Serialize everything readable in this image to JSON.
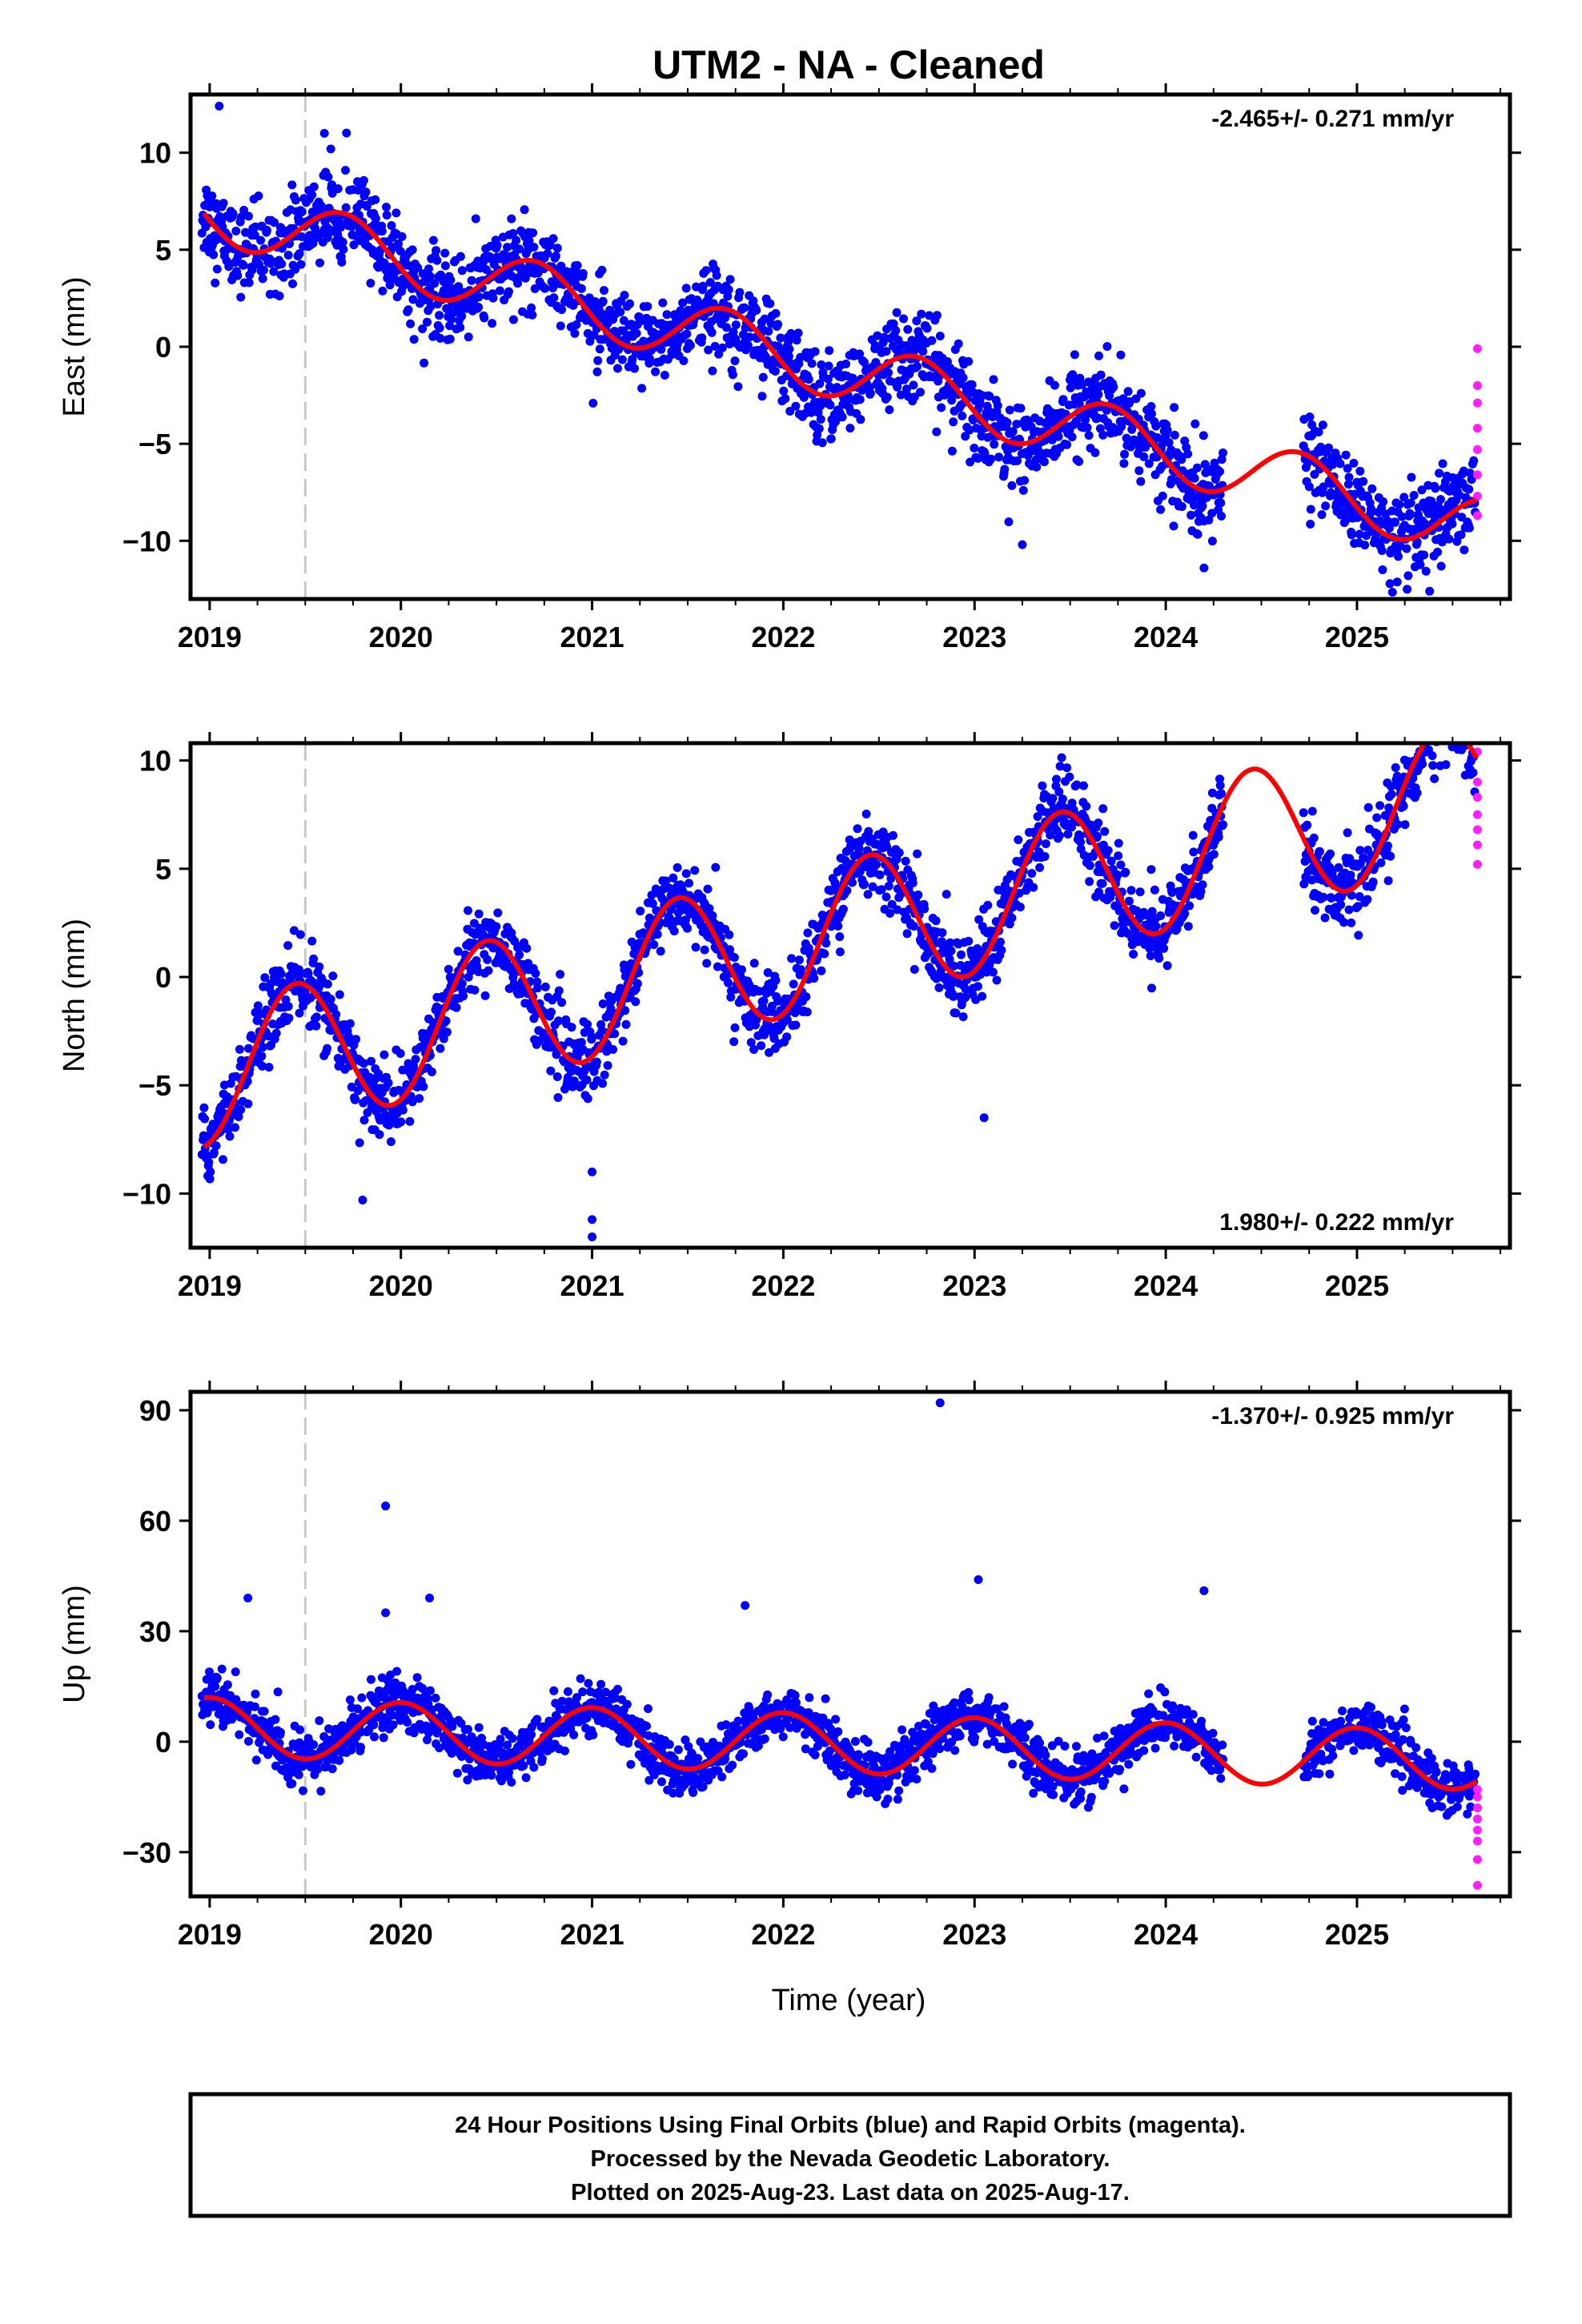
{
  "title": "UTM2  - NA - Cleaned",
  "xlabel": "Time (year)",
  "footer": [
    "24 Hour Positions Using Final Orbits (blue) and Rapid Orbits (magenta).",
    "Processed by the Nevada Geodetic Laboratory.",
    "Plotted on 2025-Aug-23. Last data on 2025-Aug-17."
  ],
  "colors": {
    "final": "#0000ff",
    "rapid": "#ff20ff",
    "model": "#ff0000",
    "event_line": "#c8c8c8"
  },
  "chart_data": [
    {
      "type": "scatter",
      "ylabel": "East (mm)",
      "rate": "-2.465+/- 0.271 mm/yr",
      "rate_position": "top-right",
      "xlim": [
        2018.9,
        2025.8
      ],
      "ylim": [
        -13,
        13
      ],
      "xticks": [
        "2019",
        "2020",
        "2021",
        "2022",
        "2023",
        "2024",
        "2025"
      ],
      "yticks": [
        "10",
        "5",
        "0",
        "−5",
        "−10"
      ],
      "yticks_values": [
        10,
        5,
        0,
        -5,
        -10
      ],
      "event_line_x": 2019.5,
      "trend": {
        "rate": -2.465,
        "value_at_2019": 7.0
      },
      "seasonal_amplitude": 1.6,
      "seasonal_phase_year": 2019.7,
      "noise": 1.1,
      "gaps": [
        [
          2024.3,
          2024.72
        ]
      ],
      "data_end": 2025.62,
      "rapid_points": [
        -0.1,
        -2.0,
        -2.9,
        -4.2,
        -5.3,
        -6.6,
        -7.7,
        -8.7
      ],
      "outliers": [
        [
          2019.05,
          12.4
        ],
        [
          2019.6,
          11.0
        ],
        [
          2025.38,
          -12.6
        ],
        [
          2024.2,
          -11.4
        ],
        [
          2023.25,
          -10.2
        ]
      ]
    },
    {
      "type": "scatter",
      "ylabel": "North (mm)",
      "rate": "1.980+/- 0.222 mm/yr",
      "rate_position": "bottom-right",
      "xlim": [
        2018.9,
        2025.8
      ],
      "ylim": [
        -12.5,
        10.8
      ],
      "xticks": [
        "2019",
        "2020",
        "2021",
        "2022",
        "2023",
        "2024",
        "2025"
      ],
      "yticks": [
        "10",
        "5",
        "0",
        "−5",
        "−10"
      ],
      "yticks_values": [
        10,
        5,
        0,
        -5,
        -10
      ],
      "event_line_x": 2019.5,
      "trend": {
        "rate": 1.98,
        "value_at_2019": -4.5
      },
      "seasonal_amplitude": 3.3,
      "seasonal_phase_year": 2019.45,
      "noise": 0.9,
      "gaps": [
        [
          2024.3,
          2024.72
        ]
      ],
      "data_end": 2025.62,
      "rapid_points": [
        10.4,
        9.0,
        8.3,
        7.5,
        6.8,
        6.1,
        5.2
      ],
      "outliers": [
        [
          2021.0,
          -12.0
        ],
        [
          2021.0,
          -11.2
        ],
        [
          2021.0,
          -9.0
        ],
        [
          2023.05,
          -6.5
        ],
        [
          2019.8,
          -10.3
        ]
      ]
    },
    {
      "type": "scatter",
      "ylabel": "Up (mm)",
      "rate": "-1.370+/- 0.925 mm/yr",
      "rate_position": "top-right",
      "xlim": [
        2018.9,
        2025.8
      ],
      "ylim": [
        -42,
        95
      ],
      "xticks": [
        "2019",
        "2020",
        "2021",
        "2022",
        "2023",
        "2024",
        "2025"
      ],
      "yticks": [
        "90",
        "60",
        "30",
        "0",
        "−30"
      ],
      "yticks_values": [
        90,
        60,
        30,
        0,
        -30
      ],
      "event_line_x": 2019.5,
      "trend": {
        "rate": -1.37,
        "value_at_2019": 4.0
      },
      "seasonal_amplitude": 8.0,
      "seasonal_phase_year": 2019.0,
      "noise": 3.5,
      "gaps": [
        [
          2024.3,
          2024.72
        ]
      ],
      "data_end": 2025.62,
      "rapid_points": [
        -13,
        -15,
        -18,
        -21,
        -24,
        -27,
        -32,
        -39
      ],
      "outliers": [
        [
          2022.82,
          92
        ],
        [
          2019.92,
          64
        ],
        [
          2023.02,
          44
        ],
        [
          2019.2,
          39
        ],
        [
          2020.15,
          39
        ],
        [
          2024.2,
          41
        ],
        [
          2021.8,
          37
        ],
        [
          2019.92,
          35
        ]
      ]
    }
  ]
}
